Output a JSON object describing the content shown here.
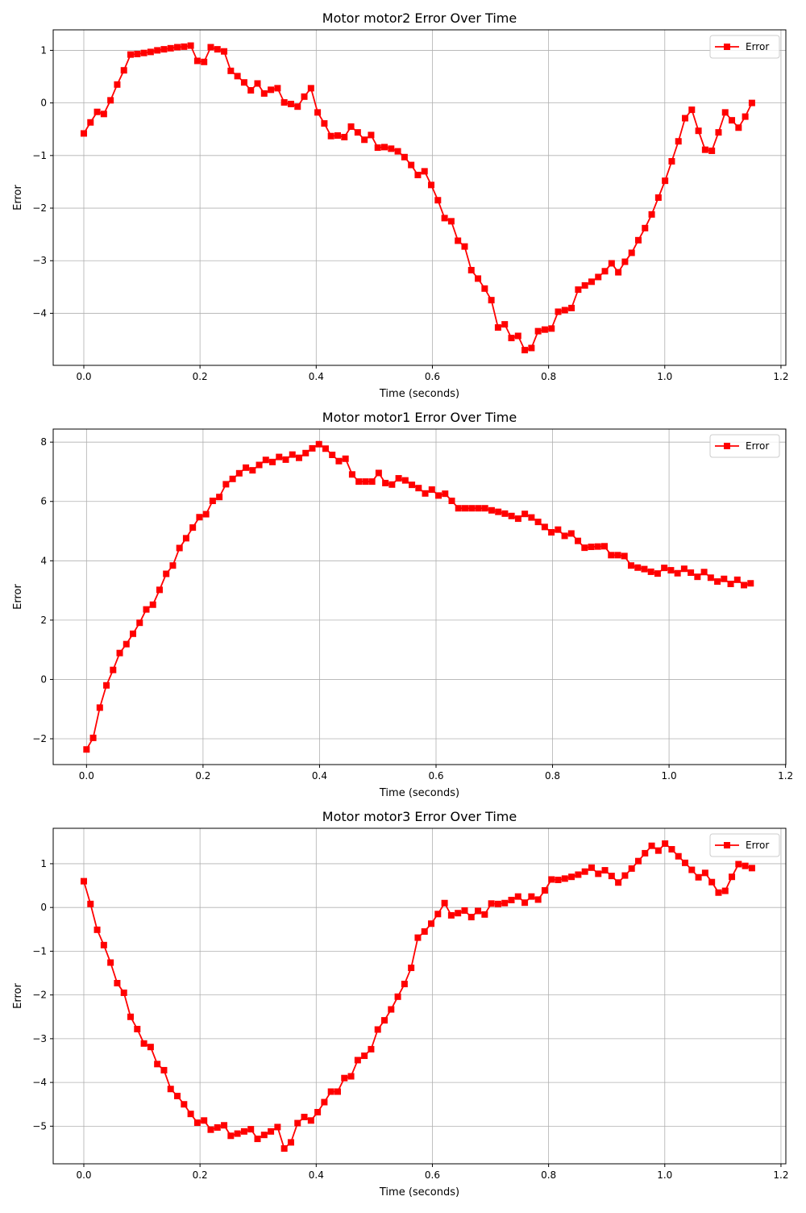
{
  "chart_data": [
    {
      "type": "line",
      "title": "Motor motor2 Error Over Time",
      "xlabel": "Time (seconds)",
      "ylabel": "Error",
      "grid": true,
      "legend": "upper right",
      "marker": "square",
      "x": [
        0,
        0.0115,
        0.023,
        0.0345,
        0.046,
        0.0575,
        0.069,
        0.0805,
        0.092,
        0.1035,
        0.115,
        0.1265,
        0.138,
        0.1495,
        0.161,
        0.1725,
        0.184,
        0.1955,
        0.207,
        0.2185,
        0.23,
        0.2415,
        0.253,
        0.2645,
        0.276,
        0.2875,
        0.299,
        0.3105,
        0.322,
        0.3335,
        0.345,
        0.3565,
        0.368,
        0.3795,
        0.391,
        0.4025,
        0.414,
        0.4255,
        0.437,
        0.4485,
        0.46,
        0.4715,
        0.483,
        0.4945,
        0.506,
        0.5175,
        0.529,
        0.5405,
        0.552,
        0.5635,
        0.575,
        0.5865,
        0.598,
        0.6095,
        0.621,
        0.6325,
        0.644,
        0.6555,
        0.667,
        0.6785,
        0.69,
        0.7015,
        0.713,
        0.7245,
        0.736,
        0.7475,
        0.759,
        0.7705,
        0.782,
        0.7935,
        0.805,
        0.8165,
        0.828,
        0.8395,
        0.851,
        0.8625,
        0.874,
        0.8855,
        0.897,
        0.9085,
        0.92,
        0.9315,
        0.943,
        0.9545,
        0.966,
        0.9775,
        0.989,
        1.0005,
        1.012,
        1.0235,
        1.035,
        1.0465,
        1.058,
        1.0695,
        1.081,
        1.0925,
        1.104,
        1.1155,
        1.127,
        1.1385,
        1.15
      ],
      "series": [
        {
          "name": "Error",
          "color": "#ff0000",
          "values": [
            -0.58,
            -0.37,
            -0.17,
            -0.21,
            0.05,
            0.35,
            0.62,
            0.92,
            0.93,
            0.95,
            0.97,
            1.0,
            1.02,
            1.04,
            1.06,
            1.07,
            1.09,
            0.8,
            0.78,
            1.06,
            1.02,
            0.98,
            0.61,
            0.51,
            0.39,
            0.24,
            0.37,
            0.18,
            0.25,
            0.28,
            0.01,
            -0.02,
            -0.07,
            0.12,
            0.28,
            -0.18,
            -0.39,
            -0.63,
            -0.62,
            -0.65,
            -0.45,
            -0.56,
            -0.7,
            -0.61,
            -0.85,
            -0.84,
            -0.87,
            -0.92,
            -1.03,
            -1.18,
            -1.37,
            -1.3,
            -1.56,
            -1.85,
            -2.19,
            -2.25,
            -2.62,
            -2.73,
            -3.18,
            -3.34,
            -3.53,
            -3.75,
            -4.27,
            -4.21,
            -4.47,
            -4.43,
            -4.7,
            -4.66,
            -4.34,
            -4.31,
            -4.29,
            -3.97,
            -3.94,
            -3.9,
            -3.55,
            -3.47,
            -3.4,
            -3.31,
            -3.2,
            -3.05,
            -3.22,
            -3.02,
            -2.85,
            -2.61,
            -2.38,
            -2.12,
            -1.8,
            -1.48,
            -1.11,
            -0.73,
            -0.29,
            -0.13,
            -0.53,
            -0.89,
            -0.91,
            -0.56,
            -0.18,
            -0.33,
            -0.47,
            -0.26,
            0.0
          ]
        }
      ],
      "xlim": [
        -0.0527,
        1.2084
      ],
      "xticks": [
        {
          "value": 0,
          "label": "0.0"
        },
        0.2,
        0.4,
        0.6,
        0.8,
        {
          "value": 1,
          "label": "1.0"
        },
        1.2
      ],
      "ylim": [
        -4.99,
        1.39
      ],
      "yticks": [
        {
          "value": -4,
          "label": "−4"
        },
        {
          "value": -3,
          "label": "−3"
        },
        {
          "value": -2,
          "label": "−2"
        },
        {
          "value": -1,
          "label": "−1"
        },
        0,
        1
      ]
    },
    {
      "type": "line",
      "title": "Motor motor1 Error Over Time",
      "xlabel": "Time (seconds)",
      "ylabel": "Error",
      "grid": true,
      "legend": "upper right",
      "marker": "square",
      "x": [
        0,
        0.0114,
        0.0228,
        0.0342,
        0.0456,
        0.057,
        0.0684,
        0.0798,
        0.0912,
        0.1026,
        0.114,
        0.1254,
        0.1368,
        0.1482,
        0.1596,
        0.171,
        0.1824,
        0.1938,
        0.2052,
        0.2166,
        0.228,
        0.2394,
        0.2508,
        0.2622,
        0.2736,
        0.285,
        0.2964,
        0.3078,
        0.3192,
        0.3306,
        0.342,
        0.3534,
        0.3648,
        0.3762,
        0.3876,
        0.399,
        0.4104,
        0.4218,
        0.4332,
        0.4446,
        0.456,
        0.4674,
        0.4788,
        0.4902,
        0.5016,
        0.513,
        0.5244,
        0.5358,
        0.5472,
        0.5586,
        0.57,
        0.5814,
        0.5928,
        0.6042,
        0.6156,
        0.627,
        0.6384,
        0.6498,
        0.6612,
        0.6726,
        0.684,
        0.6954,
        0.7068,
        0.7182,
        0.7296,
        0.741,
        0.7524,
        0.7638,
        0.7752,
        0.7866,
        0.798,
        0.8094,
        0.8208,
        0.8322,
        0.8436,
        0.855,
        0.8664,
        0.8778,
        0.8892,
        0.9006,
        0.912,
        0.9234,
        0.9348,
        0.9462,
        0.9576,
        0.969,
        0.9804,
        0.9918,
        1.0032,
        1.0146,
        1.026,
        1.0374,
        1.0488,
        1.0602,
        1.0716,
        1.083,
        1.0944,
        1.1058,
        1.1172,
        1.1286,
        1.14
      ],
      "series": [
        {
          "name": "Error",
          "color": "#ff0000",
          "values": [
            -2.36,
            -1.97,
            -0.95,
            -0.2,
            0.32,
            0.89,
            1.19,
            1.54,
            1.91,
            2.36,
            2.52,
            3.02,
            3.56,
            3.84,
            4.43,
            4.76,
            5.12,
            5.47,
            5.57,
            6.02,
            6.15,
            6.58,
            6.76,
            6.95,
            7.14,
            7.05,
            7.23,
            7.4,
            7.33,
            7.5,
            7.41,
            7.58,
            7.47,
            7.63,
            7.79,
            7.93,
            7.78,
            7.57,
            7.36,
            7.44,
            6.91,
            6.67,
            6.67,
            6.67,
            6.96,
            6.62,
            6.57,
            6.78,
            6.71,
            6.56,
            6.45,
            6.27,
            6.4,
            6.2,
            6.26,
            6.02,
            5.77,
            5.77,
            5.77,
            5.77,
            5.77,
            5.7,
            5.65,
            5.59,
            5.51,
            5.42,
            5.58,
            5.46,
            5.31,
            5.14,
            4.96,
            5.05,
            4.84,
            4.92,
            4.67,
            4.44,
            4.47,
            4.48,
            4.49,
            4.19,
            4.19,
            4.16,
            3.84,
            3.77,
            3.72,
            3.63,
            3.57,
            3.76,
            3.68,
            3.58,
            3.73,
            3.6,
            3.46,
            3.62,
            3.43,
            3.3,
            3.39,
            3.22,
            3.36,
            3.18,
            3.24
          ]
        }
      ],
      "xlim": [
        -0.0572,
        1.2005
      ],
      "xticks": [
        {
          "value": 0,
          "label": "0.0"
        },
        0.2,
        0.4,
        0.6,
        0.8,
        {
          "value": 1,
          "label": "1.0"
        },
        1.2
      ],
      "ylim": [
        -2.87,
        8.44
      ],
      "yticks": [
        {
          "value": -2,
          "label": "−2"
        },
        0,
        2,
        4,
        6,
        8
      ]
    },
    {
      "type": "line",
      "title": "Motor motor3 Error Over Time",
      "xlabel": "Time (seconds)",
      "ylabel": "Error",
      "grid": true,
      "legend": "upper right",
      "marker": "square",
      "x": [
        0,
        0.0115,
        0.023,
        0.0345,
        0.046,
        0.0575,
        0.069,
        0.0805,
        0.092,
        0.1035,
        0.115,
        0.1265,
        0.138,
        0.1495,
        0.161,
        0.1725,
        0.184,
        0.1955,
        0.207,
        0.2185,
        0.23,
        0.2415,
        0.253,
        0.2645,
        0.276,
        0.2875,
        0.299,
        0.3105,
        0.322,
        0.3335,
        0.345,
        0.3565,
        0.368,
        0.3795,
        0.391,
        0.4025,
        0.414,
        0.4255,
        0.437,
        0.4485,
        0.46,
        0.4715,
        0.483,
        0.4945,
        0.506,
        0.5175,
        0.529,
        0.5405,
        0.552,
        0.5635,
        0.575,
        0.5865,
        0.598,
        0.6095,
        0.621,
        0.6325,
        0.644,
        0.6555,
        0.667,
        0.6785,
        0.69,
        0.7015,
        0.713,
        0.7245,
        0.736,
        0.7475,
        0.759,
        0.7705,
        0.782,
        0.7935,
        0.805,
        0.8165,
        0.828,
        0.8395,
        0.851,
        0.8625,
        0.874,
        0.8855,
        0.897,
        0.9085,
        0.92,
        0.9315,
        0.943,
        0.9545,
        0.966,
        0.9775,
        0.989,
        1.0005,
        1.012,
        1.0235,
        1.035,
        1.0465,
        1.058,
        1.0695,
        1.081,
        1.0925,
        1.104,
        1.1155,
        1.127,
        1.1385,
        1.15
      ],
      "series": [
        {
          "name": "Error",
          "color": "#ff0000",
          "values": [
            0.6,
            0.08,
            -0.51,
            -0.86,
            -1.26,
            -1.73,
            -1.95,
            -2.5,
            -2.78,
            -3.11,
            -3.19,
            -3.58,
            -3.72,
            -4.15,
            -4.31,
            -4.5,
            -4.72,
            -4.92,
            -4.87,
            -5.08,
            -5.03,
            -4.98,
            -5.22,
            -5.17,
            -5.12,
            -5.07,
            -5.29,
            -5.2,
            -5.12,
            -5.02,
            -5.51,
            -5.37,
            -4.93,
            -4.79,
            -4.87,
            -4.68,
            -4.45,
            -4.21,
            -4.21,
            -3.9,
            -3.86,
            -3.49,
            -3.39,
            -3.24,
            -2.79,
            -2.58,
            -2.33,
            -2.04,
            -1.75,
            -1.38,
            -0.69,
            -0.55,
            -0.37,
            -0.15,
            0.1,
            -0.18,
            -0.13,
            -0.07,
            -0.22,
            -0.08,
            -0.16,
            0.09,
            0.08,
            0.1,
            0.17,
            0.25,
            0.11,
            0.25,
            0.18,
            0.39,
            0.64,
            0.63,
            0.66,
            0.7,
            0.75,
            0.82,
            0.91,
            0.77,
            0.85,
            0.72,
            0.57,
            0.73,
            0.89,
            1.06,
            1.24,
            1.41,
            1.3,
            1.46,
            1.33,
            1.17,
            1.02,
            0.86,
            0.69,
            0.79,
            0.58,
            0.34,
            0.38,
            0.7,
            0.99,
            0.95,
            0.9
          ]
        }
      ],
      "xlim": [
        -0.0527,
        1.2084
      ],
      "xticks": [
        {
          "value": 0,
          "label": "0.0"
        },
        0.2,
        0.4,
        0.6,
        0.8,
        {
          "value": 1,
          "label": "1.0"
        },
        1.2
      ],
      "ylim": [
        -5.86,
        1.81
      ],
      "yticks": [
        {
          "value": -5,
          "label": "−5"
        },
        {
          "value": -4,
          "label": "−4"
        },
        {
          "value": -3,
          "label": "−3"
        },
        {
          "value": -2,
          "label": "−2"
        },
        {
          "value": -1,
          "label": "−1"
        },
        0,
        1
      ]
    }
  ]
}
